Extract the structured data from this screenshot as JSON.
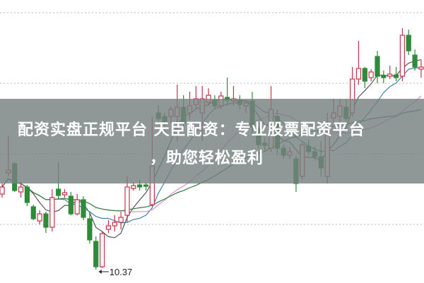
{
  "banner": {
    "line1": "配资实盘正规平台 天臣配资：专业股票配资平台",
    "line2": "，助您轻松盈利"
  },
  "chart_data": {
    "type": "candlestick",
    "title": "",
    "ylim": [
      10.18,
      14.19
    ],
    "grid": true,
    "gridlines": [
      14.01,
      13.01,
      12.01,
      11.01
    ],
    "annotations": [
      {
        "text": "10.37",
        "price": 10.37,
        "candle_index": 15
      }
    ],
    "colors": {
      "up": "#c8324a",
      "down": "#2e8b3a",
      "ma5": "#555555",
      "ma10": "#3f86a8",
      "ma20": "#e58ad6",
      "ma30": "#2f7d3a"
    },
    "moving_averages": [
      5,
      10,
      20,
      30
    ],
    "candles": [
      [
        11.44,
        11.59,
        11.39,
        11.54
      ],
      [
        11.74,
        12.27,
        11.69,
        11.78
      ],
      [
        11.87,
        11.89,
        11.47,
        11.49
      ],
      [
        11.47,
        11.61,
        11.39,
        11.54
      ],
      [
        11.54,
        11.57,
        11.27,
        11.32
      ],
      [
        11.26,
        11.29,
        11.07,
        11.09
      ],
      [
        11.06,
        11.21,
        11.01,
        11.16
      ],
      [
        11.16,
        11.19,
        10.89,
        10.97
      ],
      [
        10.97,
        11.51,
        10.91,
        11.39
      ],
      [
        11.51,
        11.89,
        11.37,
        11.42
      ],
      [
        11.43,
        11.51,
        11.39,
        11.46
      ],
      [
        11.41,
        11.47,
        11.14,
        11.16
      ],
      [
        11.16,
        11.44,
        11.14,
        11.36
      ],
      [
        11.36,
        11.41,
        11.07,
        11.11
      ],
      [
        11.09,
        11.19,
        10.74,
        10.79
      ],
      [
        10.77,
        10.84,
        10.37,
        10.41
      ],
      [
        10.41,
        10.91,
        10.39,
        10.88
      ],
      [
        10.94,
        11.07,
        10.89,
        10.99
      ],
      [
        10.99,
        11.14,
        10.91,
        11.04
      ],
      [
        11.04,
        11.19,
        10.94,
        11.11
      ],
      [
        11.14,
        11.69,
        11.04,
        11.54
      ],
      [
        11.52,
        11.61,
        11.49,
        11.56
      ],
      [
        11.57,
        11.64,
        11.49,
        11.54
      ],
      [
        11.57,
        11.61,
        11.49,
        11.55
      ],
      [
        11.29,
        12.54,
        11.27,
        11.84
      ],
      [
        12.59,
        12.69,
        12.44,
        12.51
      ],
      [
        12.54,
        12.59,
        12.34,
        12.44
      ],
      [
        12.54,
        12.69,
        12.44,
        12.64
      ],
      [
        12.54,
        12.99,
        12.19,
        12.67
      ],
      [
        12.67,
        12.84,
        12.39,
        12.44
      ],
      [
        12.59,
        12.89,
        12.49,
        12.69
      ],
      [
        12.71,
        12.97,
        12.64,
        12.79
      ],
      [
        12.59,
        12.97,
        12.19,
        12.79
      ],
      [
        12.74,
        12.94,
        12.69,
        12.84
      ],
      [
        12.77,
        12.84,
        12.64,
        12.69
      ],
      [
        12.69,
        12.89,
        12.64,
        12.83
      ],
      [
        12.81,
        13.09,
        12.69,
        12.77
      ],
      [
        12.76,
        12.97,
        12.69,
        12.79
      ],
      [
        12.77,
        12.84,
        12.64,
        12.71
      ],
      [
        12.69,
        12.77,
        12.59,
        12.73
      ],
      [
        12.76,
        12.89,
        12.29,
        12.39
      ],
      [
        12.36,
        12.39,
        12.09,
        12.14
      ],
      [
        12.16,
        12.24,
        12.04,
        12.13
      ],
      [
        12.09,
        12.97,
        12.04,
        12.64
      ],
      [
        12.54,
        12.64,
        11.99,
        12.09
      ],
      [
        12.09,
        12.14,
        11.94,
        11.99
      ],
      [
        11.99,
        12.11,
        11.94,
        12.04
      ],
      [
        11.94,
        11.99,
        11.47,
        11.59
      ],
      [
        11.69,
        12.19,
        11.64,
        12.14
      ],
      [
        12.12,
        12.21,
        11.99,
        12.04
      ],
      [
        12.04,
        12.11,
        11.91,
        11.97
      ],
      [
        11.97,
        12.19,
        11.69,
        11.81
      ],
      [
        11.69,
        12.59,
        11.59,
        12.29
      ],
      [
        12.52,
        12.79,
        12.44,
        12.59
      ],
      [
        12.54,
        12.79,
        12.44,
        12.69
      ],
      [
        12.67,
        12.79,
        12.44,
        12.51
      ],
      [
        12.59,
        13.24,
        12.54,
        13.07
      ],
      [
        13.07,
        13.61,
        12.99,
        13.22
      ],
      [
        13.22,
        13.24,
        12.94,
        13.04
      ],
      [
        13.09,
        13.21,
        13.04,
        13.17
      ],
      [
        13.39,
        13.47,
        13.01,
        13.11
      ],
      [
        13.12,
        13.19,
        13.01,
        13.09
      ],
      [
        13.11,
        13.26,
        13.07,
        13.14
      ],
      [
        13.13,
        13.24,
        13.04,
        13.09
      ],
      [
        13.11,
        13.79,
        13.04,
        13.69
      ],
      [
        13.69,
        13.77,
        13.41,
        13.47
      ],
      [
        13.41,
        13.49,
        13.19,
        13.24
      ],
      [
        13.21,
        13.34,
        13.09,
        13.24
      ]
    ]
  }
}
